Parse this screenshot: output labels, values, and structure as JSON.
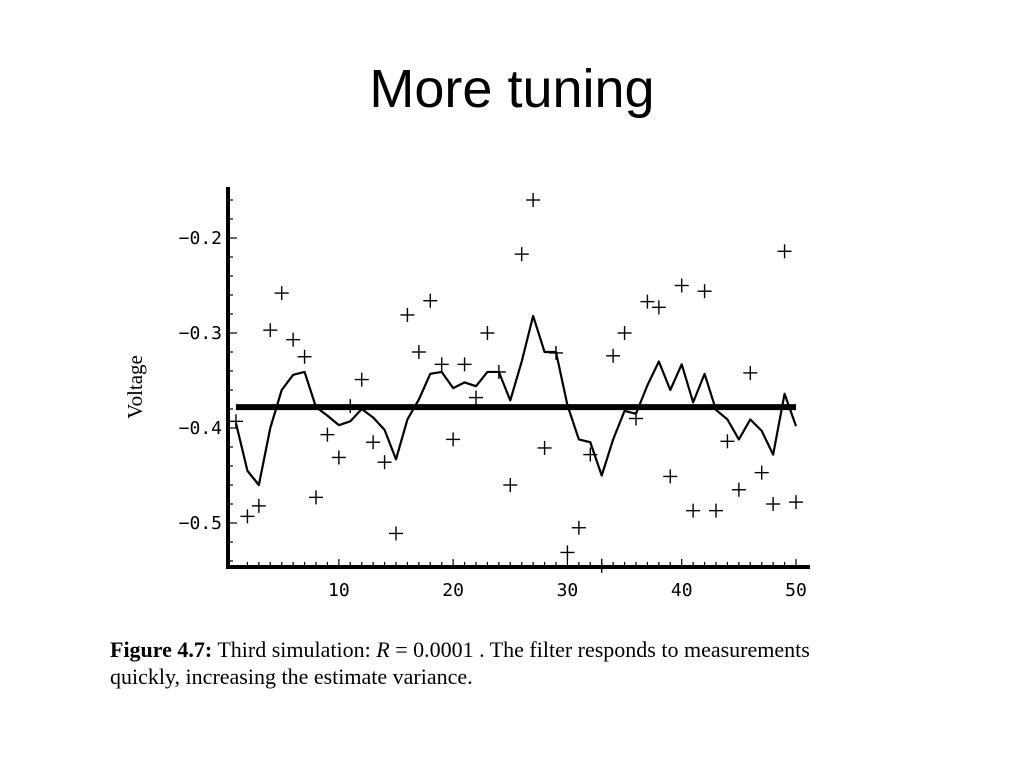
{
  "slide": {
    "title": "More tuning"
  },
  "chart_data": {
    "type": "scatter",
    "ylabel": "Voltage",
    "xlabel": "",
    "xlim": [
      1,
      50
    ],
    "ylim": [
      -0.55,
      -0.15
    ],
    "x_ticks": [
      "10",
      "20",
      "30",
      "40",
      "50"
    ],
    "y_ticks": [
      "−0.2",
      "−0.3",
      "−0.4",
      "−0.5"
    ],
    "series": [
      {
        "style": "plus-markers",
        "x": [
          1,
          2,
          3,
          4,
          5,
          6,
          7,
          8,
          9,
          10,
          11,
          12,
          13,
          14,
          15,
          16,
          17,
          18,
          19,
          20,
          21,
          22,
          23,
          24,
          25,
          26,
          27,
          28,
          29,
          30,
          31,
          32,
          33,
          34,
          35,
          36,
          37,
          38,
          39,
          40,
          41,
          42,
          43,
          44,
          45,
          46,
          47,
          48,
          49,
          50
        ],
        "values": [
          -0.393,
          -0.493,
          -0.482,
          -0.297,
          -0.258,
          -0.307,
          -0.325,
          -0.473,
          -0.407,
          -0.431,
          -0.377,
          -0.349,
          -0.415,
          -0.436,
          -0.511,
          -0.281,
          -0.32,
          -0.266,
          -0.333,
          -0.412,
          -0.333,
          -0.368,
          -0.3,
          -0.341,
          -0.46,
          -0.217,
          -0.16,
          -0.421,
          -0.321,
          -0.531,
          -0.505,
          -0.428,
          -0.545,
          -0.324,
          -0.3,
          -0.39,
          -0.267,
          -0.273,
          -0.451,
          -0.25,
          -0.487,
          -0.256,
          -0.487,
          -0.414,
          -0.465,
          -0.342,
          -0.447,
          -0.48,
          -0.214,
          -0.478
        ]
      },
      {
        "style": "thin-line",
        "x": [
          1,
          2,
          3,
          4,
          5,
          6,
          7,
          8,
          9,
          10,
          11,
          12,
          13,
          14,
          15,
          16,
          17,
          18,
          19,
          20,
          21,
          22,
          23,
          24,
          25,
          26,
          27,
          28,
          29,
          30,
          31,
          32,
          33,
          34,
          35,
          36,
          37,
          38,
          39,
          40,
          41,
          42,
          43,
          44,
          45,
          46,
          47,
          48,
          49,
          50
        ],
        "values": [
          -0.395,
          -0.445,
          -0.46,
          -0.4,
          -0.36,
          -0.344,
          -0.341,
          -0.378,
          -0.387,
          -0.397,
          -0.393,
          -0.38,
          -0.389,
          -0.402,
          -0.433,
          -0.391,
          -0.37,
          -0.343,
          -0.341,
          -0.358,
          -0.352,
          -0.356,
          -0.341,
          -0.341,
          -0.371,
          -0.33,
          -0.282,
          -0.32,
          -0.32,
          -0.376,
          -0.412,
          -0.415,
          -0.45,
          -0.412,
          -0.382,
          -0.385,
          -0.355,
          -0.33,
          -0.36,
          -0.333,
          -0.373,
          -0.343,
          -0.381,
          -0.391,
          -0.412,
          -0.391,
          -0.403,
          -0.428,
          -0.364,
          -0.398
        ]
      },
      {
        "style": "thick-line",
        "x": [
          1,
          50
        ],
        "values": [
          -0.378,
          -0.378
        ]
      }
    ]
  },
  "caption": {
    "figure_label": "Figure 4.7:",
    "text_before_var": " Third simulation: ",
    "variable": "R",
    "equation_rest": " = 0.0001 . The filter responds to measurements quickly, increasing the estimate variance."
  }
}
